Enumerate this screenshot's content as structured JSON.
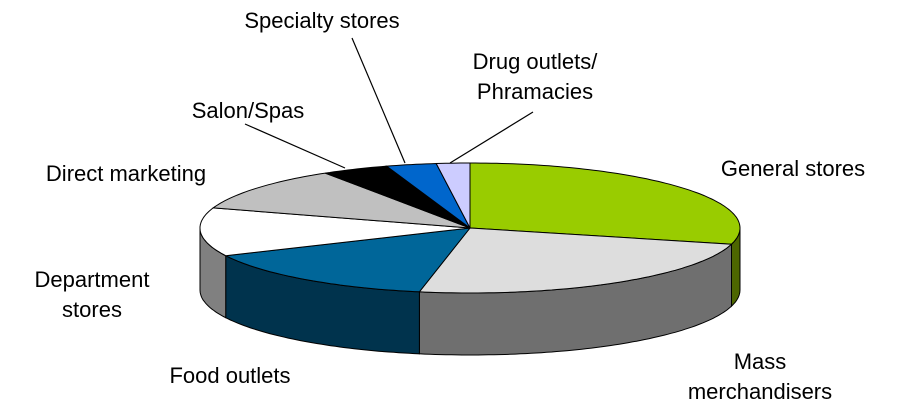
{
  "chart_data": {
    "type": "pie3d",
    "categories": [
      "General stores",
      "Mass\nmerchandisers",
      "Food outlets",
      "Department\nstores",
      "Direct marketing",
      "Salon/Spas",
      "Specialty stores",
      "Drug outlets/\nPhramacies"
    ],
    "values": [
      29,
      24,
      15,
      12,
      11,
      4,
      3,
      2
    ],
    "colors": [
      "#99cc00",
      "#dddddd",
      "#006699",
      "#ffffff",
      "#c0c0c0",
      "#000000",
      "#0066cc",
      "#ccccff"
    ]
  }
}
